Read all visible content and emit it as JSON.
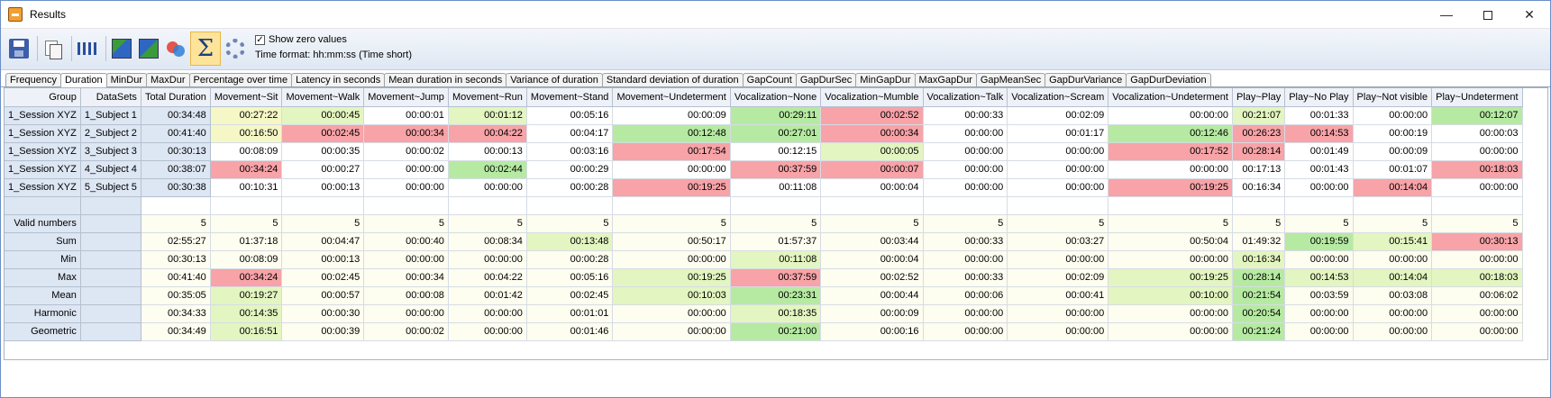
{
  "window": {
    "title": "Results"
  },
  "toolbar": {
    "show_zero_label": "Show zero values",
    "show_zero_checked": "✓",
    "time_format": "Time format: hh:mm:ss (Time short)"
  },
  "tabs": [
    {
      "label": "Frequency"
    },
    {
      "label": "Duration"
    },
    {
      "label": "MinDur"
    },
    {
      "label": "MaxDur"
    },
    {
      "label": "Percentage over time"
    },
    {
      "label": "Latency in seconds"
    },
    {
      "label": "Mean duration in seconds"
    },
    {
      "label": "Variance of duration"
    },
    {
      "label": "Standard deviation of duration"
    },
    {
      "label": "GapCount"
    },
    {
      "label": "GapDurSec"
    },
    {
      "label": "MinGapDur"
    },
    {
      "label": "MaxGapDur"
    },
    {
      "label": "GapMeanSec"
    },
    {
      "label": "GapDurVariance"
    },
    {
      "label": "GapDurDeviation"
    }
  ],
  "active_tab": "Duration",
  "columns": [
    "Group",
    "DataSets",
    "Total Duration",
    "Movement~Sit",
    "Movement~Walk",
    "Movement~Jump",
    "Movement~Run",
    "Movement~Stand",
    "Movement~Undeterment",
    "Vocalization~None",
    "Vocalization~Mumble",
    "Vocalization~Talk",
    "Vocalization~Scream",
    "Vocalization~Undeterment",
    "Play~Play",
    "Play~No Play",
    "Play~Not visible",
    "Play~Undeterment"
  ],
  "rows": [
    {
      "group": "1_Session XYZ",
      "dataset": "1_Subject 1",
      "cells": [
        "00:34:48",
        "00:27:22",
        "00:00:45",
        "00:00:01",
        "00:01:12",
        "00:05:16",
        "00:00:09",
        "00:29:11",
        "00:02:52",
        "00:00:33",
        "00:02:09",
        "00:00:00",
        "00:21:07",
        "00:01:33",
        "00:00:00",
        "00:12:07"
      ],
      "colors": [
        "fixed",
        "yellow",
        "lgreen",
        "white",
        "lgreen",
        "white",
        "white",
        "green",
        "red",
        "white",
        "white",
        "white",
        "lgreen",
        "white",
        "white",
        "green"
      ]
    },
    {
      "group": "1_Session XYZ",
      "dataset": "2_Subject 2",
      "cells": [
        "00:41:40",
        "00:16:50",
        "00:02:45",
        "00:00:34",
        "00:04:22",
        "00:04:17",
        "00:12:48",
        "00:27:01",
        "00:00:34",
        "00:00:00",
        "00:01:17",
        "00:12:46",
        "00:26:23",
        "00:14:53",
        "00:00:19",
        "00:00:03"
      ],
      "colors": [
        "fixed",
        "yellow",
        "red",
        "red",
        "red",
        "white",
        "green",
        "green",
        "red",
        "white",
        "white",
        "green",
        "red",
        "red",
        "white",
        "white"
      ]
    },
    {
      "group": "1_Session XYZ",
      "dataset": "3_Subject 3",
      "cells": [
        "00:30:13",
        "00:08:09",
        "00:00:35",
        "00:00:02",
        "00:00:13",
        "00:03:16",
        "00:17:54",
        "00:12:15",
        "00:00:05",
        "00:00:00",
        "00:00:00",
        "00:17:52",
        "00:28:14",
        "00:01:49",
        "00:00:09",
        "00:00:00"
      ],
      "colors": [
        "fixed",
        "white",
        "white",
        "white",
        "white",
        "white",
        "red",
        "white",
        "lgreen",
        "white",
        "white",
        "red",
        "red",
        "white",
        "white",
        "white"
      ]
    },
    {
      "group": "1_Session XYZ",
      "dataset": "4_Subject 4",
      "cells": [
        "00:38:07",
        "00:34:24",
        "00:00:27",
        "00:00:00",
        "00:02:44",
        "00:00:29",
        "00:00:00",
        "00:37:59",
        "00:00:07",
        "00:00:00",
        "00:00:00",
        "00:00:00",
        "00:17:13",
        "00:01:43",
        "00:01:07",
        "00:18:03"
      ],
      "colors": [
        "fixed",
        "red",
        "white",
        "white",
        "green",
        "white",
        "white",
        "red",
        "red",
        "white",
        "white",
        "white",
        "white",
        "white",
        "white",
        "red"
      ]
    },
    {
      "group": "1_Session XYZ",
      "dataset": "5_Subject 5",
      "cells": [
        "00:30:38",
        "00:10:31",
        "00:00:13",
        "00:00:00",
        "00:00:00",
        "00:00:28",
        "00:19:25",
        "00:11:08",
        "00:00:04",
        "00:00:00",
        "00:00:00",
        "00:19:25",
        "00:16:34",
        "00:00:00",
        "00:14:04",
        "00:00:00"
      ],
      "colors": [
        "fixed",
        "white",
        "white",
        "white",
        "white",
        "white",
        "red",
        "white",
        "white",
        "white",
        "white",
        "red",
        "white",
        "white",
        "red",
        "white"
      ]
    }
  ],
  "stats": [
    {
      "label": "Valid numbers",
      "cells": [
        "5",
        "5",
        "5",
        "5",
        "5",
        "5",
        "5",
        "5",
        "5",
        "5",
        "5",
        "5",
        "5",
        "5",
        "5",
        "5"
      ],
      "colors": [
        "cream",
        "cream",
        "cream",
        "cream",
        "cream",
        "cream",
        "cream",
        "cream",
        "cream",
        "cream",
        "cream",
        "cream",
        "cream",
        "cream",
        "cream",
        "cream"
      ]
    },
    {
      "label": "Sum",
      "cells": [
        "02:55:27",
        "01:37:18",
        "00:04:47",
        "00:00:40",
        "00:08:34",
        "00:13:48",
        "00:50:17",
        "01:57:37",
        "00:03:44",
        "00:00:33",
        "00:03:27",
        "00:50:04",
        "01:49:32",
        "00:19:59",
        "00:15:41",
        "00:30:13"
      ],
      "colors": [
        "cream",
        "cream",
        "cream",
        "cream",
        "cream",
        "lgreen",
        "cream",
        "cream",
        "cream",
        "cream",
        "cream",
        "cream",
        "cream",
        "green",
        "lgreen",
        "red"
      ]
    },
    {
      "label": "Min",
      "cells": [
        "00:30:13",
        "00:08:09",
        "00:00:13",
        "00:00:00",
        "00:00:00",
        "00:00:28",
        "00:00:00",
        "00:11:08",
        "00:00:04",
        "00:00:00",
        "00:00:00",
        "00:00:00",
        "00:16:34",
        "00:00:00",
        "00:00:00",
        "00:00:00"
      ],
      "colors": [
        "cream",
        "cream",
        "cream",
        "cream",
        "cream",
        "cream",
        "cream",
        "lgreen",
        "cream",
        "cream",
        "cream",
        "cream",
        "lgreen",
        "cream",
        "cream",
        "cream"
      ]
    },
    {
      "label": "Max",
      "cells": [
        "00:41:40",
        "00:34:24",
        "00:02:45",
        "00:00:34",
        "00:04:22",
        "00:05:16",
        "00:19:25",
        "00:37:59",
        "00:02:52",
        "00:00:33",
        "00:02:09",
        "00:19:25",
        "00:28:14",
        "00:14:53",
        "00:14:04",
        "00:18:03"
      ],
      "colors": [
        "cream",
        "red",
        "cream",
        "cream",
        "cream",
        "cream",
        "lgreen",
        "red",
        "cream",
        "cream",
        "cream",
        "lgreen",
        "green",
        "lgreen",
        "lgreen",
        "lgreen"
      ]
    },
    {
      "label": "Mean",
      "cells": [
        "00:35:05",
        "00:19:27",
        "00:00:57",
        "00:00:08",
        "00:01:42",
        "00:02:45",
        "00:10:03",
        "00:23:31",
        "00:00:44",
        "00:00:06",
        "00:00:41",
        "00:10:00",
        "00:21:54",
        "00:03:59",
        "00:03:08",
        "00:06:02"
      ],
      "colors": [
        "cream",
        "lgreen",
        "cream",
        "cream",
        "cream",
        "cream",
        "lgreen",
        "green",
        "cream",
        "cream",
        "cream",
        "lgreen",
        "green",
        "cream",
        "cream",
        "cream"
      ]
    },
    {
      "label": "Harmonic",
      "cells": [
        "00:34:33",
        "00:14:35",
        "00:00:30",
        "00:00:00",
        "00:00:00",
        "00:01:01",
        "00:00:00",
        "00:18:35",
        "00:00:09",
        "00:00:00",
        "00:00:00",
        "00:00:00",
        "00:20:54",
        "00:00:00",
        "00:00:00",
        "00:00:00"
      ],
      "colors": [
        "cream",
        "lgreen",
        "cream",
        "cream",
        "cream",
        "cream",
        "cream",
        "lgreen",
        "cream",
        "cream",
        "cream",
        "cream",
        "green",
        "cream",
        "cream",
        "cream"
      ]
    },
    {
      "label": "Geometric",
      "cells": [
        "00:34:49",
        "00:16:51",
        "00:00:39",
        "00:00:02",
        "00:00:00",
        "00:01:46",
        "00:00:00",
        "00:21:00",
        "00:00:16",
        "00:00:00",
        "00:00:00",
        "00:00:00",
        "00:21:24",
        "00:00:00",
        "00:00:00",
        "00:00:00"
      ],
      "colors": [
        "cream",
        "lgreen",
        "cream",
        "cream",
        "cream",
        "cream",
        "cream",
        "green",
        "cream",
        "cream",
        "cream",
        "cream",
        "green",
        "cream",
        "cream",
        "cream"
      ]
    }
  ]
}
